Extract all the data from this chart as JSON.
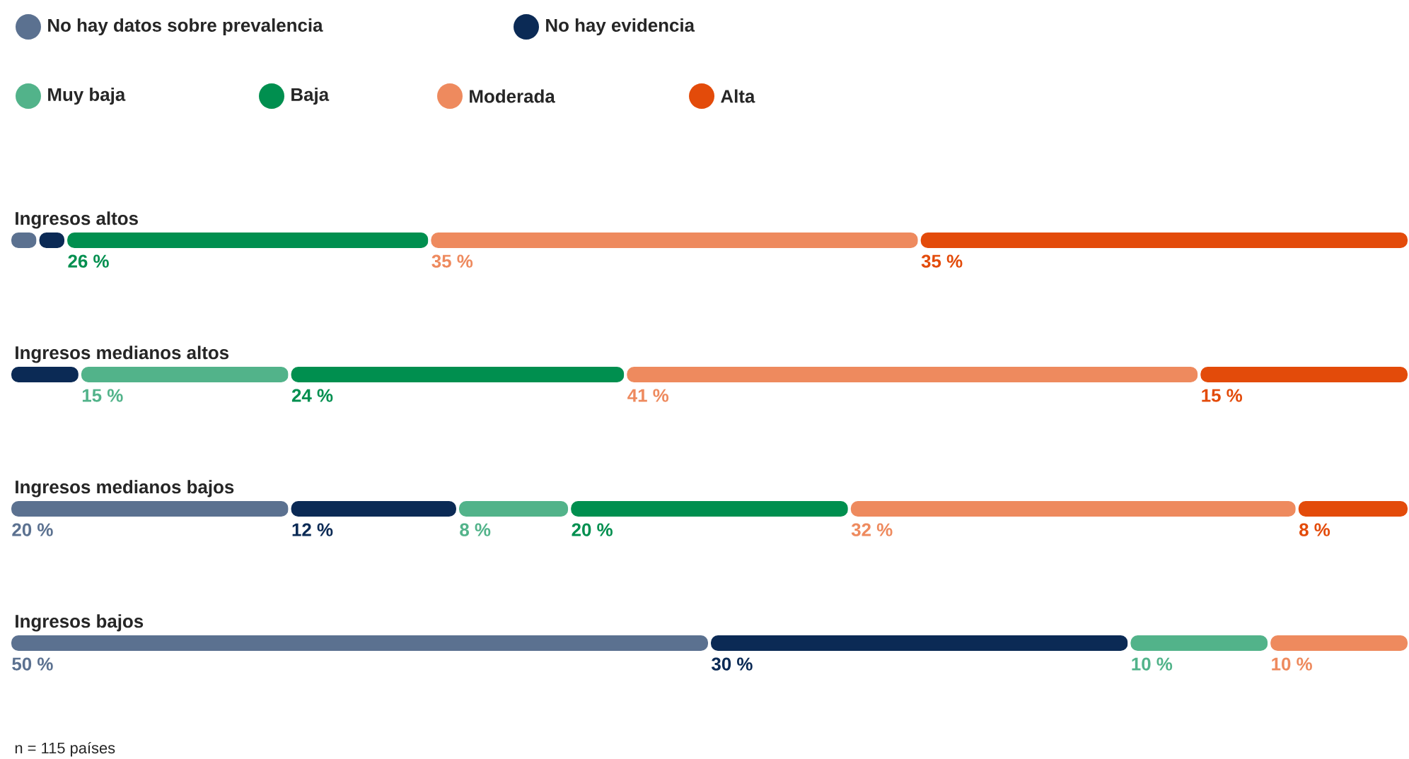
{
  "chart_data": {
    "type": "bar",
    "orientation": "horizontal",
    "stacked": true,
    "legend": "top",
    "tick_labels": false,
    "xlim": [
      0,
      100
    ],
    "categories": [
      "Ingresos altos",
      "Ingresos medianos altos",
      "Ingresos medianos bajos",
      "Ingresos bajos"
    ],
    "series": [
      {
        "name": "No hay datos sobre prevalencia",
        "color": "#5b7190",
        "values": [
          2,
          null,
          20,
          50
        ],
        "value_labels": [
          null,
          null,
          "20 %",
          "50 %"
        ]
      },
      {
        "name": "No hay evidencia",
        "color": "#0b2a55",
        "values": [
          2,
          5,
          12,
          30
        ],
        "value_labels": [
          null,
          null,
          "12 %",
          "30 %"
        ]
      },
      {
        "name": "Muy baja",
        "color": "#52b38a",
        "values": [
          null,
          15,
          8,
          10
        ],
        "value_labels": [
          null,
          "15 %",
          "8 %",
          "10 %"
        ]
      },
      {
        "name": "Baja",
        "color": "#008f4f",
        "values": [
          26,
          24,
          20,
          null
        ],
        "value_labels": [
          "26 %",
          "24 %",
          "20 %",
          null
        ]
      },
      {
        "name": "Moderada",
        "color": "#ee8a5e",
        "values": [
          35,
          41,
          32,
          10
        ],
        "value_labels": [
          "35 %",
          "41 %",
          "32 %",
          "10 %"
        ]
      },
      {
        "name": "Alta",
        "color": "#e34b0a",
        "values": [
          35,
          15,
          8,
          null
        ],
        "value_labels": [
          "35 %",
          "15 %",
          "8 %",
          null
        ]
      }
    ],
    "annotations": [
      "n = 115 países"
    ]
  }
}
